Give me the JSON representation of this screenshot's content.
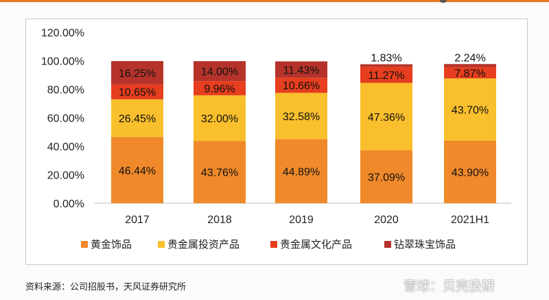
{
  "chart_data": {
    "type": "bar",
    "stacked": true,
    "categories": [
      "2017",
      "2018",
      "2019",
      "2020",
      "2021H1"
    ],
    "series": [
      {
        "name": "黄金饰品",
        "color": "#f0892a",
        "values": [
          46.44,
          43.76,
          44.89,
          37.09,
          43.9
        ]
      },
      {
        "name": "贵金属投资产品",
        "color": "#f9bf2c",
        "values": [
          26.45,
          32.0,
          32.58,
          47.36,
          43.7
        ]
      },
      {
        "name": "贵金属文化产品",
        "color": "#e63e1e",
        "values": [
          10.65,
          9.96,
          10.66,
          11.27,
          7.87
        ]
      },
      {
        "name": "钻翠珠宝饰品",
        "color": "#b5332b",
        "values": [
          16.25,
          14.0,
          11.43,
          1.83,
          2.24
        ]
      }
    ],
    "yticks": [
      "0.00%",
      "20.00%",
      "40.00%",
      "60.00%",
      "80.00%",
      "100.00%",
      "120.00%"
    ],
    "ylim": [
      0,
      120
    ],
    "grid": false,
    "legend": "bottom"
  },
  "source": "资料来源：公司招股书，天风证券研究所",
  "watermark": "雪球：贝壳投研"
}
